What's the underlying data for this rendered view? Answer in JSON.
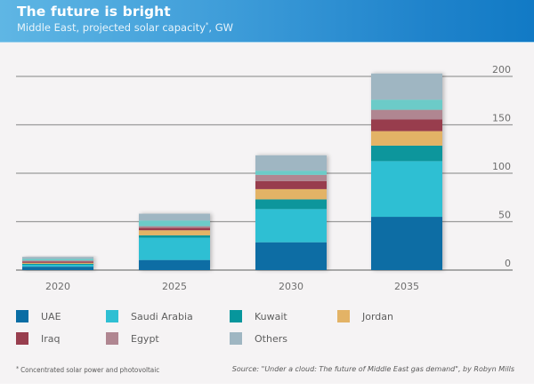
{
  "header": {
    "title": "The future is bright",
    "subtitle": "Middle East, projected solar capacity",
    "subtitle_marker": "*",
    "subtitle_unit": ", GW"
  },
  "footer": {
    "footnote_marker": "*",
    "footnote": "Concentrated solar power and photovoltaic",
    "source": "Source: \"Under a cloud: The future of Middle East gas demand\", by Robyn Mills"
  },
  "chart_data": {
    "type": "bar",
    "stacked": true,
    "title": "The future is bright",
    "subtitle": "Middle East, projected solar capacity*, GW",
    "xlabel": "",
    "ylabel": "GW",
    "categories": [
      "2020",
      "2025",
      "2030",
      "2035"
    ],
    "ylim": [
      0,
      200
    ],
    "yticks": [
      0,
      50,
      100,
      150,
      200
    ],
    "y_axis_position": "right",
    "grid": true,
    "legend_position": "bottom",
    "series": [
      {
        "name": "UAE",
        "color": "#0a6da4",
        "values": [
          3.5,
          10.4,
          28.7,
          55
        ],
        "in_legend": true
      },
      {
        "name": "Saudi Arabia",
        "color": "#2fbfd3",
        "values": [
          2,
          23,
          34.3,
          57.5
        ],
        "in_legend": true
      },
      {
        "name": "Kuwait",
        "color": "#07969c",
        "values": [
          1,
          2.5,
          10,
          16
        ],
        "in_legend": true
      },
      {
        "name": "Jordan",
        "color": "#e3b366",
        "values": [
          1,
          5.2,
          10.6,
          15
        ],
        "in_legend": true
      },
      {
        "name": "Iraq",
        "color": "#983e4e",
        "values": [
          1.3,
          2.4,
          8.3,
          12
        ],
        "in_legend": true
      },
      {
        "name": "Egypt",
        "color": "#b08691",
        "values": [
          1,
          1.8,
          6.4,
          10
        ],
        "in_legend": true
      },
      {
        "name": "Unlabelled segment",
        "color": "#6ccbc8",
        "values": [
          1.8,
          5.9,
          4.3,
          10.5
        ],
        "in_legend": false
      },
      {
        "name": "Others",
        "color": "#9fb6c2",
        "values": [
          2,
          7,
          15.9,
          27
        ],
        "in_legend": true
      }
    ],
    "legend": [
      {
        "label": "UAE",
        "color": "#0a6da4"
      },
      {
        "label": "Saudi Arabia",
        "color": "#2fbfd3"
      },
      {
        "label": "Kuwait",
        "color": "#07969c"
      },
      {
        "label": "Jordan",
        "color": "#e3b366"
      },
      {
        "label": "Iraq",
        "color": "#983e4e"
      },
      {
        "label": "Egypt",
        "color": "#b08691"
      },
      {
        "label": "Others",
        "color": "#9fb6c2"
      }
    ]
  }
}
